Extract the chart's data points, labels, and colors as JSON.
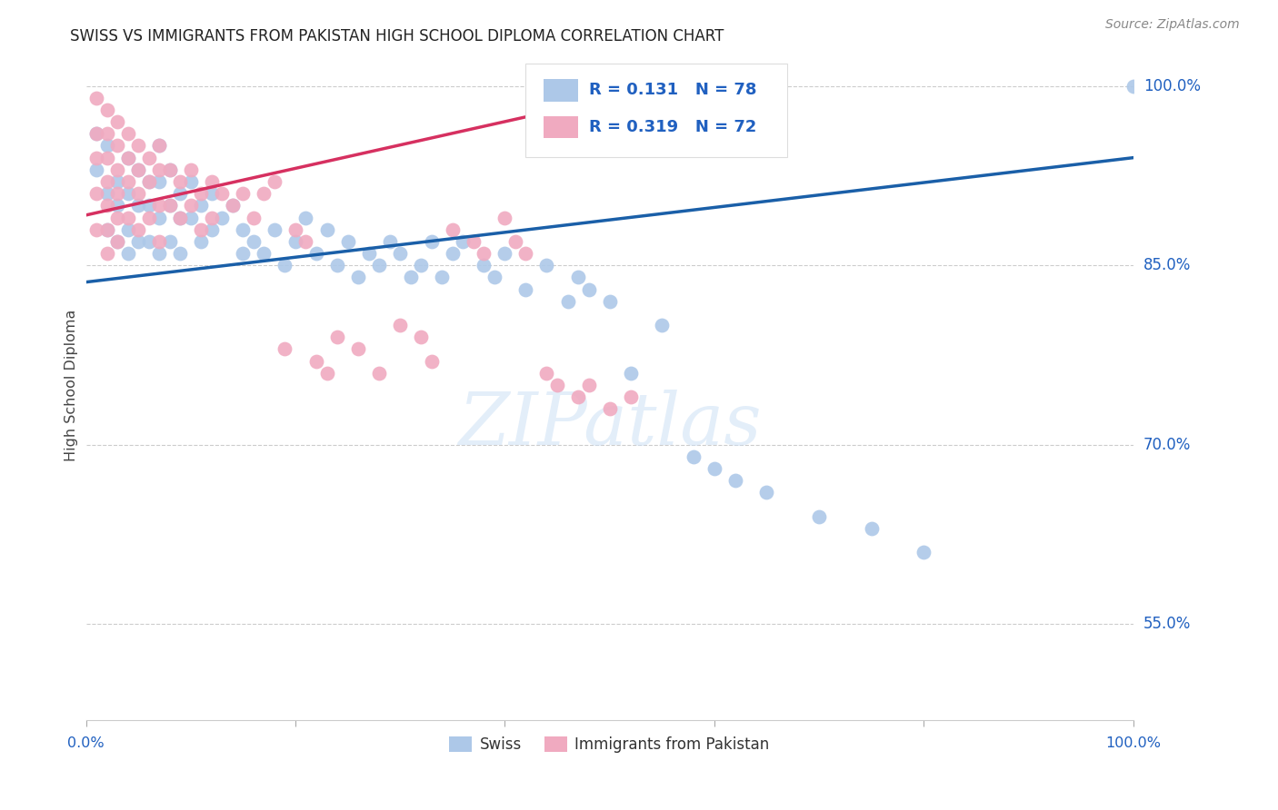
{
  "title": "SWISS VS IMMIGRANTS FROM PAKISTAN HIGH SCHOOL DIPLOMA CORRELATION CHART",
  "source": "Source: ZipAtlas.com",
  "ylabel": "High School Diploma",
  "xlim": [
    0.0,
    1.0
  ],
  "ylim": [
    0.47,
    1.03
  ],
  "yticks": [
    0.55,
    0.7,
    0.85,
    1.0
  ],
  "ytick_labels": [
    "55.0%",
    "70.0%",
    "85.0%",
    "100.0%"
  ],
  "swiss_color": "#adc8e8",
  "swiss_line_color": "#1a5fa8",
  "pak_color": "#f0aac0",
  "pak_line_color": "#d63060",
  "background_color": "#ffffff",
  "grid_color": "#cccccc",
  "swiss_x": [
    0.01,
    0.01,
    0.02,
    0.02,
    0.02,
    0.03,
    0.03,
    0.03,
    0.04,
    0.04,
    0.04,
    0.04,
    0.05,
    0.05,
    0.05,
    0.06,
    0.06,
    0.06,
    0.07,
    0.07,
    0.07,
    0.07,
    0.08,
    0.08,
    0.08,
    0.09,
    0.09,
    0.09,
    0.1,
    0.1,
    0.11,
    0.11,
    0.12,
    0.12,
    0.13,
    0.14,
    0.15,
    0.15,
    0.16,
    0.17,
    0.18,
    0.19,
    0.2,
    0.21,
    0.22,
    0.23,
    0.24,
    0.25,
    0.26,
    0.27,
    0.28,
    0.29,
    0.3,
    0.31,
    0.32,
    0.33,
    0.34,
    0.35,
    0.36,
    0.38,
    0.39,
    0.4,
    0.42,
    0.44,
    0.46,
    0.47,
    0.48,
    0.5,
    0.52,
    0.55,
    0.58,
    0.6,
    0.62,
    0.65,
    0.7,
    0.75,
    0.8,
    1.0
  ],
  "swiss_y": [
    0.96,
    0.93,
    0.95,
    0.91,
    0.88,
    0.92,
    0.9,
    0.87,
    0.94,
    0.91,
    0.88,
    0.86,
    0.93,
    0.9,
    0.87,
    0.92,
    0.9,
    0.87,
    0.95,
    0.92,
    0.89,
    0.86,
    0.93,
    0.9,
    0.87,
    0.91,
    0.89,
    0.86,
    0.92,
    0.89,
    0.9,
    0.87,
    0.91,
    0.88,
    0.89,
    0.9,
    0.88,
    0.86,
    0.87,
    0.86,
    0.88,
    0.85,
    0.87,
    0.89,
    0.86,
    0.88,
    0.85,
    0.87,
    0.84,
    0.86,
    0.85,
    0.87,
    0.86,
    0.84,
    0.85,
    0.87,
    0.84,
    0.86,
    0.87,
    0.85,
    0.84,
    0.86,
    0.83,
    0.85,
    0.82,
    0.84,
    0.83,
    0.82,
    0.76,
    0.8,
    0.69,
    0.68,
    0.67,
    0.66,
    0.64,
    0.63,
    0.61,
    1.0
  ],
  "pak_x": [
    0.01,
    0.01,
    0.01,
    0.01,
    0.01,
    0.02,
    0.02,
    0.02,
    0.02,
    0.02,
    0.02,
    0.02,
    0.03,
    0.03,
    0.03,
    0.03,
    0.03,
    0.03,
    0.04,
    0.04,
    0.04,
    0.04,
    0.05,
    0.05,
    0.05,
    0.05,
    0.06,
    0.06,
    0.06,
    0.07,
    0.07,
    0.07,
    0.07,
    0.08,
    0.08,
    0.09,
    0.09,
    0.1,
    0.1,
    0.11,
    0.11,
    0.12,
    0.12,
    0.13,
    0.14,
    0.15,
    0.16,
    0.17,
    0.18,
    0.19,
    0.2,
    0.21,
    0.22,
    0.23,
    0.24,
    0.26,
    0.28,
    0.3,
    0.32,
    0.33,
    0.35,
    0.37,
    0.38,
    0.4,
    0.41,
    0.42,
    0.44,
    0.45,
    0.47,
    0.48,
    0.5,
    0.52
  ],
  "pak_y": [
    0.99,
    0.96,
    0.94,
    0.91,
    0.88,
    0.98,
    0.96,
    0.94,
    0.92,
    0.9,
    0.88,
    0.86,
    0.97,
    0.95,
    0.93,
    0.91,
    0.89,
    0.87,
    0.96,
    0.94,
    0.92,
    0.89,
    0.95,
    0.93,
    0.91,
    0.88,
    0.94,
    0.92,
    0.89,
    0.95,
    0.93,
    0.9,
    0.87,
    0.93,
    0.9,
    0.92,
    0.89,
    0.93,
    0.9,
    0.91,
    0.88,
    0.92,
    0.89,
    0.91,
    0.9,
    0.91,
    0.89,
    0.91,
    0.92,
    0.78,
    0.88,
    0.87,
    0.77,
    0.76,
    0.79,
    0.78,
    0.76,
    0.8,
    0.79,
    0.77,
    0.88,
    0.87,
    0.86,
    0.89,
    0.87,
    0.86,
    0.76,
    0.75,
    0.74,
    0.75,
    0.73,
    0.74
  ],
  "swiss_line_x0": 0.0,
  "swiss_line_y0": 0.836,
  "swiss_line_x1": 1.0,
  "swiss_line_y1": 0.94,
  "pak_line_x0": 0.0,
  "pak_line_y0": 0.892,
  "pak_line_x1": 0.44,
  "pak_line_y1": 0.978
}
